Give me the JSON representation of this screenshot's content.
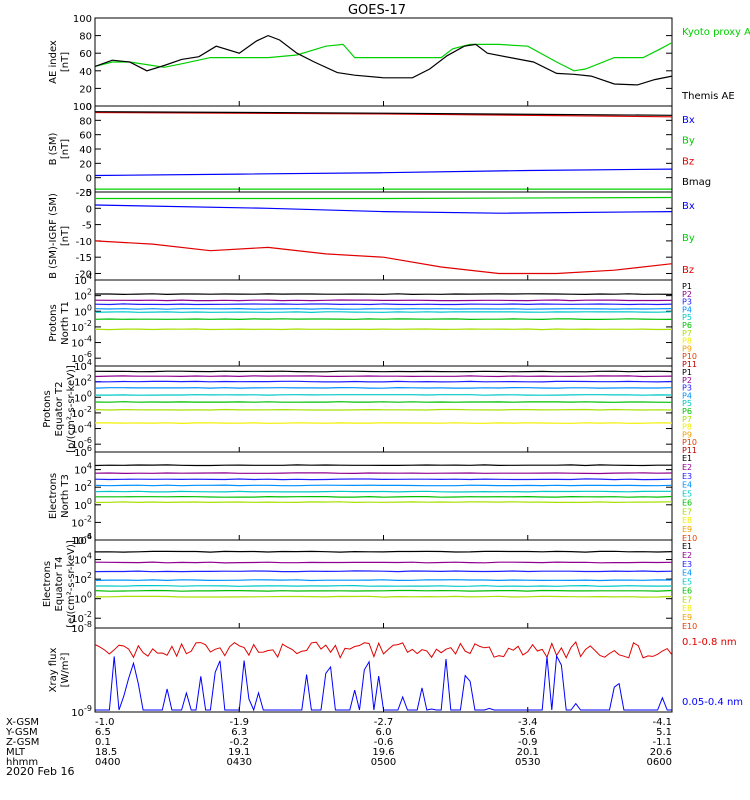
{
  "title": "GOES-17",
  "footer_date": "2020 Feb 16",
  "colors": {
    "black": "#000000",
    "red": "#e00000",
    "green": "#00d000",
    "blue": "#0000ff",
    "channels": [
      "#000000",
      "#900090",
      "#2020ff",
      "#0090ff",
      "#00c8c8",
      "#00c000",
      "#a8e000",
      "#f0f000",
      "#f0a000",
      "#e04000",
      "#c00000"
    ]
  },
  "x_axis": {
    "row_labels": [
      "X-GSM",
      "Y-GSM",
      "Z-GSM",
      "MLT",
      "hhmm"
    ],
    "columns": [
      {
        "values": [
          "-1.0",
          "6.5",
          "0.1",
          "18.5",
          "0400"
        ]
      },
      {
        "values": [
          "-1.9",
          "6.3",
          "-0.2",
          "19.1",
          "0430"
        ]
      },
      {
        "values": [
          "-2.7",
          "6.0",
          "-0.6",
          "19.6",
          "0500"
        ]
      },
      {
        "values": [
          "-3.4",
          "5.6",
          "-0.9",
          "20.1",
          "0530"
        ]
      },
      {
        "values": [
          "-4.1",
          "5.1",
          "-1.1",
          "20.6",
          "0600"
        ]
      }
    ]
  },
  "chart_data": [
    {
      "type": "line",
      "ylabel": "AE index [nT]",
      "ylim": [
        0,
        100
      ],
      "yticks": [
        "100",
        "80",
        "60",
        "40",
        "20",
        "0"
      ],
      "legend": [
        "Kyoto proxy AE",
        "Themis AE"
      ],
      "series": [
        {
          "name": "Kyoto proxy AE",
          "color": "green",
          "x": [
            0,
            0.03,
            0.06,
            0.09,
            0.12,
            0.15,
            0.2,
            0.25,
            0.3,
            0.35,
            0.4,
            0.43,
            0.45,
            0.5,
            0.55,
            0.6,
            0.62,
            0.65,
            0.7,
            0.75,
            0.8,
            0.83,
            0.85,
            0.9,
            0.95,
            0.98,
            1
          ],
          "values": [
            45,
            50,
            50,
            47,
            44,
            48,
            55,
            55,
            55,
            58,
            68,
            70,
            55,
            55,
            55,
            55,
            65,
            70,
            70,
            68,
            50,
            40,
            42,
            55,
            55,
            65,
            72
          ]
        },
        {
          "name": "Themis AE",
          "color": "black",
          "x": [
            0,
            0.03,
            0.06,
            0.09,
            0.12,
            0.15,
            0.18,
            0.21,
            0.25,
            0.28,
            0.3,
            0.32,
            0.35,
            0.38,
            0.42,
            0.45,
            0.5,
            0.55,
            0.58,
            0.61,
            0.64,
            0.66,
            0.68,
            0.72,
            0.76,
            0.8,
            0.83,
            0.86,
            0.9,
            0.94,
            0.97,
            1
          ],
          "values": [
            45,
            52,
            50,
            40,
            46,
            53,
            56,
            68,
            60,
            74,
            80,
            75,
            60,
            50,
            38,
            35,
            32,
            32,
            42,
            57,
            68,
            70,
            60,
            55,
            50,
            37,
            36,
            34,
            25,
            24,
            30,
            34
          ]
        }
      ]
    },
    {
      "type": "line",
      "ylabel": "B (SM) [nT]",
      "ylim": [
        -20,
        100
      ],
      "yticks": [
        "100",
        "80",
        "60",
        "40",
        "20",
        "0",
        "-20"
      ],
      "legend": [
        "Bx",
        "By",
        "Bz",
        "Bmag"
      ],
      "series": [
        {
          "name": "Bx",
          "color": "blue",
          "x": [
            0,
            0.25,
            0.5,
            0.75,
            1
          ],
          "values": [
            3,
            5,
            7,
            10,
            12
          ]
        },
        {
          "name": "By",
          "color": "green",
          "x": [
            0,
            0.5,
            1
          ],
          "values": [
            -16,
            -16,
            -16
          ]
        },
        {
          "name": "Bz",
          "color": "red",
          "x": [
            0,
            0.5,
            1
          ],
          "values": [
            91,
            89,
            85
          ]
        },
        {
          "name": "Bmag",
          "color": "black",
          "x": [
            0,
            0.5,
            1
          ],
          "values": [
            92,
            90,
            87
          ]
        }
      ]
    },
    {
      "type": "line",
      "ylabel": "B (SM)-IGRF (SM) [nT]",
      "ylim": [
        -22,
        5
      ],
      "yticks": [
        "5",
        "0",
        "-5",
        "-10",
        "-15",
        "-20"
      ],
      "legend": [
        "Bx",
        "By",
        "Bz"
      ],
      "series": [
        {
          "name": "By",
          "color": "green",
          "x": [
            0,
            0.5,
            1
          ],
          "values": [
            3,
            3,
            3.3
          ]
        },
        {
          "name": "Bx",
          "color": "blue",
          "x": [
            0,
            0.3,
            0.5,
            0.7,
            1
          ],
          "values": [
            1,
            0,
            -1,
            -1.5,
            -1
          ]
        },
        {
          "name": "Bz",
          "color": "red",
          "x": [
            0,
            0.1,
            0.2,
            0.3,
            0.4,
            0.5,
            0.6,
            0.7,
            0.8,
            0.9,
            1
          ],
          "values": [
            -10,
            -11,
            -13,
            -12,
            -14,
            -15,
            -18,
            -20,
            -20,
            -19,
            -17
          ]
        }
      ]
    },
    {
      "type": "line",
      "ylabel": "Protons North T1",
      "log_scale": true,
      "ylim_exp": [
        -7,
        4
      ],
      "yticks": [
        "10^4",
        "10^2",
        "10^0",
        "10^-2",
        "10^-4",
        "10^-6"
      ],
      "legend": [
        "P1",
        "P2",
        "P3",
        "P4",
        "P5",
        "P6",
        "P7",
        "P8",
        "P9",
        "P10",
        "P11"
      ],
      "levels": [
        2.2,
        1.4,
        0.9,
        0.3,
        -0.1,
        -1.0,
        -2.3
      ]
    },
    {
      "type": "line",
      "ylabel": "Protons Equator T2 [p/(cm^2-s-sr-keV)]",
      "log_scale": true,
      "ylim_exp": [
        -7,
        4
      ],
      "yticks": [
        "10^4",
        "10^2",
        "10^0",
        "10^-2",
        "10^-4",
        "10^-6"
      ],
      "legend": [
        "P1",
        "P2",
        "P3",
        "P4",
        "P5",
        "P6",
        "P7",
        "P8",
        "P9",
        "P10",
        "P11"
      ],
      "levels": [
        3.3,
        2.7,
        2.0,
        1.2,
        0.3,
        -0.6,
        -1.6,
        -3.3
      ]
    },
    {
      "type": "line",
      "ylabel": "Electrons North T3",
      "log_scale": true,
      "ylim_exp": [
        -4,
        6
      ],
      "yticks": [
        "10^6",
        "10^4",
        "10^2",
        "10^0",
        "10^-2",
        "10^-4"
      ],
      "legend": [
        "E1",
        "E2",
        "E3",
        "E4",
        "E5",
        "E6",
        "E7",
        "E8",
        "E9",
        "E10"
      ],
      "levels": [
        4.5,
        3.6,
        2.9,
        2.2,
        1.5,
        0.9,
        0.3
      ]
    },
    {
      "type": "line",
      "ylabel": "Electrons Equator T4 [e/(cm^2-s-sr-keV)]",
      "log_scale": true,
      "ylim_exp": [
        -3,
        6
      ],
      "yticks": [
        "10^6",
        "10^4",
        "10^2",
        "10^0",
        "10^-2"
      ],
      "legend": [
        "E1",
        "E2",
        "E3",
        "E4",
        "E5",
        "E6",
        "E7",
        "E8",
        "E9",
        "E10"
      ],
      "levels": [
        4.8,
        3.7,
        2.8,
        1.9,
        1.3,
        0.8,
        0.2
      ]
    },
    {
      "type": "line",
      "ylabel": "Xray flux [W/m^2]",
      "log_scale": true,
      "ylim_exp": [
        -9,
        -8
      ],
      "yticks": [
        "10^-8",
        "10^-9"
      ],
      "legend": [
        "0.1-0.8 nm",
        "0.05-0.4 nm"
      ]
    }
  ]
}
